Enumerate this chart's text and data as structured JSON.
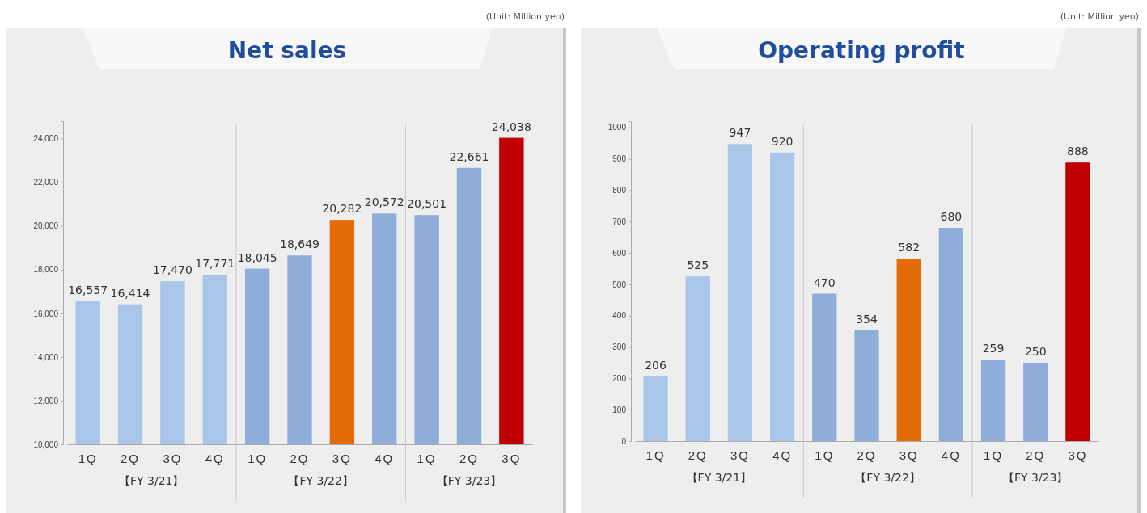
{
  "chart_data": [
    {
      "type": "bar",
      "title": "Net sales",
      "categories": [
        "1Q",
        "2Q",
        "3Q",
        "4Q",
        "1Q",
        "2Q",
        "3Q",
        "4Q",
        "1Q",
        "2Q",
        "3Q"
      ],
      "values": [
        16557,
        16414,
        17470,
        17771,
        18045,
        18649,
        20282,
        20572,
        20501,
        22661,
        24038
      ],
      "colors": [
        "#a9c5e8",
        "#a9c5e8",
        "#a9c5e8",
        "#a9c5e8",
        "#8eaed9",
        "#8eaed9",
        "#e36c09",
        "#8eaed9",
        "#8eaed9",
        "#8eaed9",
        "#c00000"
      ],
      "ylim": [
        10000,
        24800
      ],
      "yticks": [
        {
          "value": 10000,
          "label": "10,000"
        },
        {
          "value": 12000,
          "label": "12,000"
        },
        {
          "value": 14000,
          "label": "14,000"
        },
        {
          "value": 16000,
          "label": "16,000"
        },
        {
          "value": 18000,
          "label": "18,000"
        },
        {
          "value": 20000,
          "label": "20,000"
        },
        {
          "value": 22000,
          "label": "22,000"
        },
        {
          "value": 24000,
          "label": "24,000"
        }
      ],
      "value_labels": [
        "16,557",
        "16,414",
        "17,470",
        "17,771",
        "18,045",
        "18,649",
        "20,282",
        "20,572",
        "20,501",
        "22,661",
        "24,038"
      ],
      "grid": false,
      "annotations": [
        "(Unit: Million yen)",
        "【FY 3/21】",
        "【FY 3/22】",
        "【FY 3/23】"
      ]
    },
    {
      "type": "bar",
      "title": "Operating profit",
      "categories": [
        "1Q",
        "2Q",
        "3Q",
        "4Q",
        "1Q",
        "2Q",
        "3Q",
        "4Q",
        "1Q",
        "2Q",
        "3Q"
      ],
      "values": [
        206,
        525,
        947,
        920,
        470,
        354,
        582,
        680,
        259,
        250,
        888
      ],
      "colors": [
        "#a9c5e8",
        "#a9c5e8",
        "#a9c5e8",
        "#a9c5e8",
        "#8eaed9",
        "#8eaed9",
        "#e36c09",
        "#8eaed9",
        "#8eaed9",
        "#8eaed9",
        "#c00000"
      ],
      "ylim": [
        0,
        1020
      ],
      "yticks": [
        0,
        100,
        200,
        300,
        400,
        500,
        600,
        700,
        800,
        900,
        1000
      ],
      "data_labels": true,
      "grid": false,
      "annotations": [
        "(Unit: Million yen)",
        "【FY 3/21】",
        "【FY 3/22】",
        "【FY 3/23】"
      ]
    }
  ]
}
